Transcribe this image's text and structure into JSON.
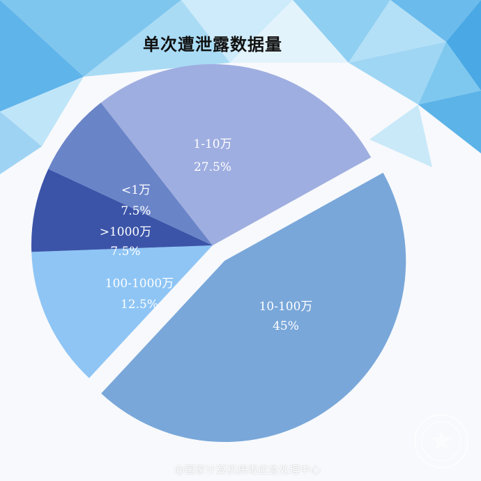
{
  "chart_data": {
    "type": "pie",
    "title": "单次遭泄露数据量",
    "slices": [
      {
        "label": "1-10万",
        "value": 27.5,
        "display": "27.5%",
        "color": "#9faee0"
      },
      {
        "label": "10-100万",
        "value": 45,
        "display": "45%",
        "color": "#79a7d9",
        "exploded": true
      },
      {
        "label": "100-1000万",
        "value": 12.5,
        "display": "12.5%",
        "color": "#8ec5f5"
      },
      {
        "label": ">1000万",
        "value": 7.5,
        "display": "7.5%",
        "color": "#3b54a8"
      },
      {
        "label": "<1万",
        "value": 7.5,
        "display": "7.5%",
        "color": "#6a84c8"
      }
    ],
    "legend": "none"
  },
  "watermark": "@国家计算机病毒应急处理中心"
}
